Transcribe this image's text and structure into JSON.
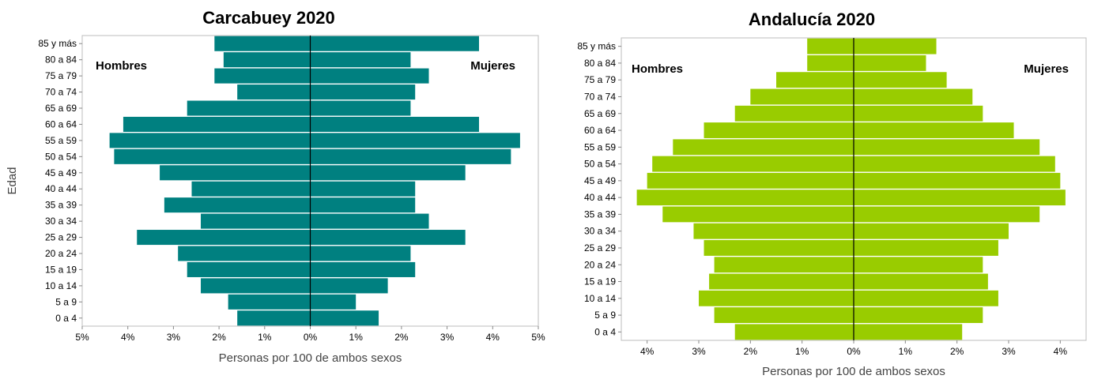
{
  "chart_data": [
    {
      "type": "bar",
      "orientation": "horizontal",
      "title": "Carcabuey 2020",
      "xlabel": "Personas por 100 de ambos sexos",
      "ylabel": "Edad",
      "xlim": [
        -5,
        5
      ],
      "x_ticks": [
        "5%",
        "4%",
        "3%",
        "2%",
        "1%",
        "0%",
        "1%",
        "2%",
        "3%",
        "4%",
        "5%"
      ],
      "bar_color": "#008080",
      "grid": false,
      "categories": [
        "0 a 4",
        "5 a 9",
        "10 a 14",
        "15 a 19",
        "20 a 24",
        "25 a 29",
        "30 a 34",
        "35 a 39",
        "40 a 44",
        "45 a 49",
        "50 a 54",
        "55 a 59",
        "60 a 64",
        "65 a 69",
        "70 a 74",
        "75 a 79",
        "80 a 84",
        "85 y más"
      ],
      "series": [
        {
          "name": "Hombres",
          "values": [
            1.6,
            1.8,
            2.4,
            2.7,
            2.9,
            3.8,
            2.4,
            3.2,
            2.6,
            3.3,
            4.3,
            4.4,
            4.1,
            2.7,
            1.6,
            2.1,
            1.9,
            2.1
          ]
        },
        {
          "name": "Mujeres",
          "values": [
            1.5,
            1.0,
            1.7,
            2.3,
            2.2,
            3.4,
            2.6,
            2.3,
            2.3,
            3.4,
            4.4,
            4.6,
            3.7,
            2.2,
            2.3,
            2.6,
            2.2,
            3.7
          ]
        }
      ]
    },
    {
      "type": "bar",
      "orientation": "horizontal",
      "title": "Andalucía 2020",
      "xlabel": "Personas por 100 de ambos sexos",
      "ylabel": "",
      "xlim": [
        -4.5,
        4.5
      ],
      "x_ticks": [
        "4%",
        "3%",
        "2%",
        "1%",
        "0%",
        "1%",
        "2%",
        "3%",
        "4%"
      ],
      "bar_color": "#99cc00",
      "grid": false,
      "categories": [
        "0 a 4",
        "5 a 9",
        "10 a 14",
        "15 a 19",
        "20 a 24",
        "25 a 29",
        "30 a 34",
        "35 a 39",
        "40 a 44",
        "45 a 49",
        "50 a 54",
        "55 a 59",
        "60 a 64",
        "65 a 69",
        "70 a 74",
        "75 a 79",
        "80 a 84",
        "85 y más"
      ],
      "series": [
        {
          "name": "Hombres",
          "values": [
            2.3,
            2.7,
            3.0,
            2.8,
            2.7,
            2.9,
            3.1,
            3.7,
            4.2,
            4.0,
            3.9,
            3.5,
            2.9,
            2.3,
            2.0,
            1.5,
            0.9,
            0.9
          ]
        },
        {
          "name": "Mujeres",
          "values": [
            2.1,
            2.5,
            2.8,
            2.6,
            2.5,
            2.8,
            3.0,
            3.6,
            4.1,
            4.0,
            3.9,
            3.6,
            3.1,
            2.5,
            2.3,
            1.8,
            1.4,
            1.6
          ]
        }
      ]
    }
  ]
}
